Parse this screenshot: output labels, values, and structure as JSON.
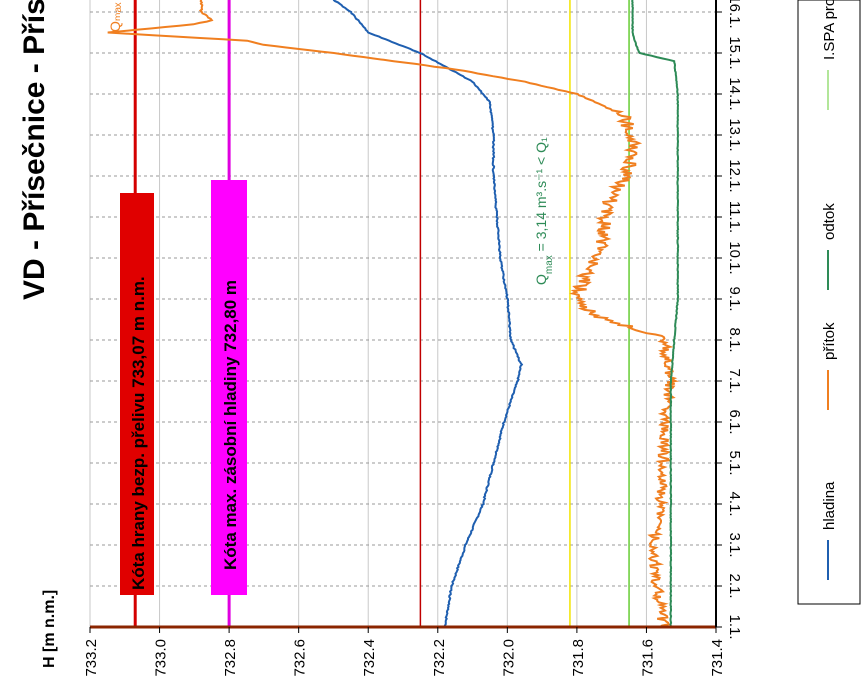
{
  "chart_data": {
    "type": "line",
    "title": "VD - Přísečnice - Přís",
    "ylabel": "H [m n.m.]",
    "ylim": [
      731.4,
      733.2
    ],
    "y_ticks": [
      "733.2",
      "733.0",
      "732.8",
      "732.6",
      "732.4",
      "732.2",
      "732.0",
      "731.8",
      "731.6",
      "731.4"
    ],
    "x_ticks": [
      "1.1.",
      "2.1.",
      "3.1.",
      "4.1.",
      "5.1.",
      "6.1.",
      "7.1.",
      "8.1.",
      "9.1.",
      "10.1.",
      "11.1.",
      "12.1.",
      "13.1.",
      "14.1.",
      "15.1.",
      "16.1."
    ],
    "series": [
      {
        "name": "hladina",
        "color": "#1f5fb0",
        "x": [
          1,
          2,
          3,
          4,
          5,
          6,
          7,
          7.4,
          8,
          9,
          10,
          11,
          12,
          13,
          13.8,
          14.3,
          15,
          15.5,
          16,
          16.3
        ],
        "values": [
          732.18,
          732.16,
          732.12,
          732.07,
          732.04,
          732.01,
          731.97,
          731.96,
          731.99,
          732.0,
          732.02,
          732.03,
          732.04,
          732.04,
          732.05,
          732.1,
          732.25,
          732.4,
          732.45,
          732.5
        ]
      },
      {
        "name": "přítok",
        "color": "#f07f20",
        "x": [
          1,
          2,
          3,
          4,
          5,
          6,
          7,
          7.5,
          8,
          8.1,
          8.6,
          9,
          9.5,
          10,
          10.5,
          11,
          11.5,
          12,
          12.5,
          13,
          13.5,
          14,
          14.3,
          14.6,
          15.0,
          15.2,
          15.3,
          15.5,
          15.7,
          15.8,
          16,
          16.3
        ],
        "values": [
          731.55,
          731.57,
          731.58,
          731.56,
          731.55,
          731.55,
          731.53,
          731.54,
          731.55,
          731.57,
          731.75,
          731.8,
          731.78,
          731.75,
          731.72,
          731.72,
          731.7,
          731.66,
          731.64,
          731.64,
          731.67,
          731.8,
          731.95,
          732.15,
          732.5,
          732.7,
          732.75,
          733.15,
          732.9,
          732.85,
          732.88,
          732.88
        ]
      },
      {
        "name": "odtok",
        "color": "#2e8b57",
        "x": [
          1,
          4,
          7,
          8,
          9,
          10,
          11,
          12,
          13,
          14,
          14.8,
          15.0,
          15.2,
          15.5,
          16,
          16.3
        ],
        "values": [
          731.53,
          731.53,
          731.53,
          731.52,
          731.51,
          731.51,
          731.51,
          731.51,
          731.51,
          731.51,
          731.52,
          731.62,
          731.63,
          731.64,
          731.64,
          731.64
        ]
      }
    ],
    "reference_lines": [
      {
        "label": "Kóta hrany bezp. přelivu 733,07 m n.m.",
        "value": 733.07,
        "color": "#d40000"
      },
      {
        "label": "Kóta max. zásobní hladiny 732,80 m",
        "value": 732.8,
        "color": "#e000e0"
      },
      {
        "label": "",
        "value": 732.25,
        "color": "#c00000"
      },
      {
        "label": "",
        "value": 731.82,
        "color": "#f2e400"
      },
      {
        "label": "",
        "value": 731.65,
        "color": "#66cc33"
      }
    ],
    "annotation_main": "Q",
    "annotation_sub": "max",
    "annotation_rest": " = 3,14 m³.s⁻¹ < Q₁",
    "annotation_top": "Qₘₐₓ",
    "legend": {
      "placement": "right",
      "entries": [
        {
          "label": "hladina",
          "color": "#1f5fb0"
        },
        {
          "label": "přítok",
          "color": "#f07f20"
        },
        {
          "label": "odtok",
          "color": "#2e8b57"
        },
        {
          "label": "I.SPA pro od",
          "color": "#66cc33"
        }
      ]
    }
  }
}
